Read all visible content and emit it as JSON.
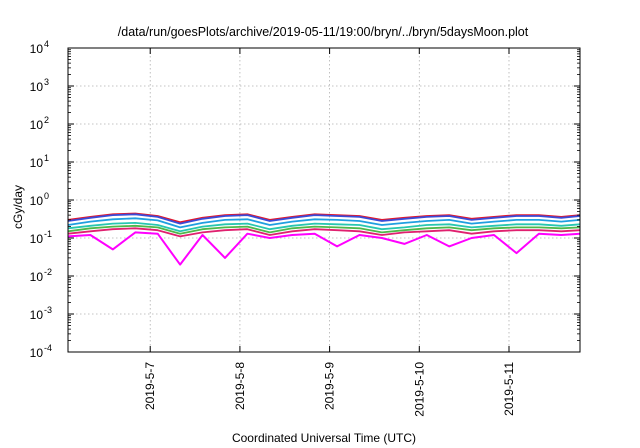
{
  "chart_data": {
    "type": "line",
    "title": "/data/run/goesPlots/archive/2019-05-11/19:00/bryn/../bryn/5daysMoon.plot",
    "xlabel": "Coordinated Universal Time (UTC)",
    "ylabel": "cGy/day",
    "yscale": "log",
    "ylim": [
      0.0001,
      10000
    ],
    "xlim": [
      "2019-05-06 02:00",
      "2019-05-11 19:00"
    ],
    "grid": true,
    "y_ticks": [
      {
        "base": "10",
        "exp": "-4"
      },
      {
        "base": "10",
        "exp": "-3"
      },
      {
        "base": "10",
        "exp": "-2"
      },
      {
        "base": "10",
        "exp": "-1"
      },
      {
        "base": "10",
        "exp": "0"
      },
      {
        "base": "10",
        "exp": "1"
      },
      {
        "base": "10",
        "exp": "2"
      },
      {
        "base": "10",
        "exp": "3"
      },
      {
        "base": "10",
        "exp": "4"
      }
    ],
    "x_ticks": [
      "2019-5-7",
      "2019-5-8",
      "2019-5-9",
      "2019-5-10",
      "2019-5-11"
    ],
    "x_tick_values": [
      "2019-05-07 00:00",
      "2019-05-08 00:00",
      "2019-05-09 00:00",
      "2019-05-10 00:00",
      "2019-05-11 00:00"
    ],
    "x": [
      "2019-05-06 02:00",
      "2019-05-06 08:00",
      "2019-05-06 14:00",
      "2019-05-06 20:00",
      "2019-05-07 02:00",
      "2019-05-07 08:00",
      "2019-05-07 14:00",
      "2019-05-07 20:00",
      "2019-05-08 02:00",
      "2019-05-08 08:00",
      "2019-05-08 14:00",
      "2019-05-08 20:00",
      "2019-05-09 02:00",
      "2019-05-09 08:00",
      "2019-05-09 14:00",
      "2019-05-09 20:00",
      "2019-05-10 02:00",
      "2019-05-10 08:00",
      "2019-05-10 14:00",
      "2019-05-10 20:00",
      "2019-05-11 02:00",
      "2019-05-11 08:00",
      "2019-05-11 14:00",
      "2019-05-11 19:00"
    ],
    "series": [
      {
        "color": "#e4162a",
        "values": [
          0.3,
          0.36,
          0.42,
          0.44,
          0.38,
          0.26,
          0.34,
          0.4,
          0.42,
          0.3,
          0.36,
          0.42,
          0.4,
          0.38,
          0.3,
          0.34,
          0.38,
          0.4,
          0.32,
          0.36,
          0.4,
          0.4,
          0.36,
          0.4
        ]
      },
      {
        "color": "#3a4bd8",
        "values": [
          0.28,
          0.34,
          0.4,
          0.42,
          0.36,
          0.24,
          0.32,
          0.38,
          0.4,
          0.28,
          0.34,
          0.4,
          0.38,
          0.36,
          0.28,
          0.32,
          0.36,
          0.38,
          0.3,
          0.34,
          0.38,
          0.38,
          0.34,
          0.38
        ]
      },
      {
        "color": "#1f9fe0",
        "values": [
          0.22,
          0.27,
          0.31,
          0.33,
          0.29,
          0.19,
          0.25,
          0.3,
          0.31,
          0.22,
          0.27,
          0.31,
          0.3,
          0.28,
          0.22,
          0.25,
          0.28,
          0.3,
          0.24,
          0.27,
          0.3,
          0.3,
          0.27,
          0.3
        ]
      },
      {
        "color": "#27c7b0",
        "values": [
          0.18,
          0.21,
          0.24,
          0.25,
          0.22,
          0.15,
          0.2,
          0.23,
          0.24,
          0.17,
          0.21,
          0.24,
          0.23,
          0.22,
          0.17,
          0.19,
          0.22,
          0.23,
          0.19,
          0.21,
          0.23,
          0.23,
          0.21,
          0.23
        ]
      },
      {
        "color": "#4fb84a",
        "values": [
          0.15,
          0.18,
          0.2,
          0.21,
          0.19,
          0.13,
          0.17,
          0.19,
          0.2,
          0.14,
          0.18,
          0.2,
          0.19,
          0.18,
          0.14,
          0.16,
          0.18,
          0.19,
          0.16,
          0.18,
          0.19,
          0.19,
          0.18,
          0.19
        ]
      },
      {
        "color": "#e0206f",
        "values": [
          0.13,
          0.15,
          0.17,
          0.18,
          0.16,
          0.11,
          0.14,
          0.16,
          0.17,
          0.12,
          0.15,
          0.17,
          0.16,
          0.15,
          0.12,
          0.14,
          0.15,
          0.16,
          0.13,
          0.15,
          0.16,
          0.16,
          0.15,
          0.16
        ]
      },
      {
        "color": "#ff00ff",
        "values": [
          0.11,
          0.12,
          0.05,
          0.14,
          0.13,
          0.02,
          0.12,
          0.03,
          0.13,
          0.1,
          0.12,
          0.13,
          0.06,
          0.12,
          0.1,
          0.07,
          0.12,
          0.06,
          0.1,
          0.12,
          0.04,
          0.13,
          0.12,
          0.13
        ]
      }
    ]
  }
}
